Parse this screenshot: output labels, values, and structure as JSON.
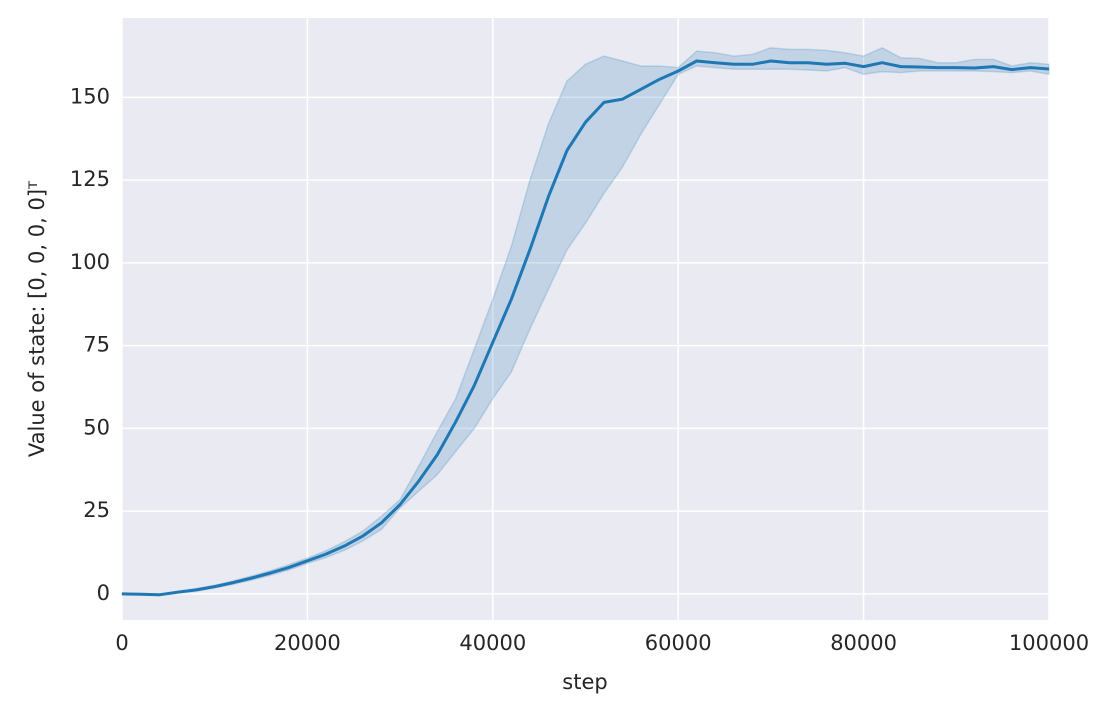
{
  "chart_data": {
    "type": "line",
    "x_label": "step",
    "y_label": "Value of state: [0, 0, 0, 0]ᵀ",
    "x": [
      0,
      2000,
      4000,
      6000,
      8000,
      10000,
      12000,
      14000,
      16000,
      18000,
      20000,
      22000,
      24000,
      26000,
      28000,
      30000,
      32000,
      34000,
      36000,
      38000,
      40000,
      42000,
      44000,
      46000,
      48000,
      50000,
      52000,
      54000,
      56000,
      58000,
      60000,
      62000,
      64000,
      66000,
      68000,
      70000,
      72000,
      74000,
      76000,
      78000,
      80000,
      82000,
      84000,
      86000,
      88000,
      90000,
      92000,
      94000,
      96000,
      98000,
      100000
    ],
    "series": [
      {
        "color": "#1f77b4",
        "values": [
          0,
          -0.1,
          -0.3,
          0.5,
          1.2,
          2.2,
          3.4,
          4.8,
          6.3,
          8,
          10,
          12,
          14.5,
          17.5,
          21.5,
          27,
          34,
          42,
          52,
          63,
          76,
          89,
          104,
          120,
          134,
          142.5,
          148.5,
          149.5,
          152.5,
          155.5,
          158,
          161,
          160.5,
          160,
          160,
          161,
          160.5,
          160.5,
          160,
          160.3,
          159.3,
          160.5,
          159.3,
          159.2,
          159,
          159,
          158.9,
          159.3,
          158.4,
          159,
          158.6
        ],
        "lower": [
          -0.1,
          -0.2,
          -0.5,
          0.2,
          0.8,
          1.8,
          2.9,
          4.2,
          5.6,
          7.2,
          9.2,
          11,
          13.2,
          16,
          19.5,
          26,
          31,
          36,
          43,
          50,
          59,
          67,
          80,
          92,
          104,
          112,
          121,
          129,
          139,
          148,
          157,
          159.5,
          159,
          158.5,
          158.5,
          158.5,
          158.5,
          158.3,
          158,
          159,
          157,
          157.8,
          157.5,
          158,
          158,
          158,
          158,
          157.8,
          157.5,
          158,
          157
        ],
        "upper": [
          0.1,
          0.1,
          -0.1,
          0.8,
          1.6,
          2.6,
          3.9,
          5.4,
          7,
          8.8,
          10.8,
          13,
          15.8,
          19,
          23.5,
          28.5,
          38.5,
          49,
          59,
          74,
          89,
          105,
          125,
          142,
          155,
          160,
          162.5,
          161,
          159.5,
          159.5,
          159,
          164,
          163.5,
          162.5,
          163,
          165,
          164.5,
          164.5,
          164.2,
          163.5,
          162.5,
          165,
          162,
          161.8,
          160.5,
          160.5,
          161.5,
          161.5,
          159.5,
          160.5,
          160
        ]
      }
    ],
    "xlim": [
      0,
      100000
    ],
    "ylim": [
      -7.9,
      174
    ],
    "xticks": [
      0,
      20000,
      40000,
      60000,
      80000,
      100000
    ],
    "yticks": [
      0,
      25,
      50,
      75,
      100,
      125,
      150
    ],
    "grid": true
  }
}
